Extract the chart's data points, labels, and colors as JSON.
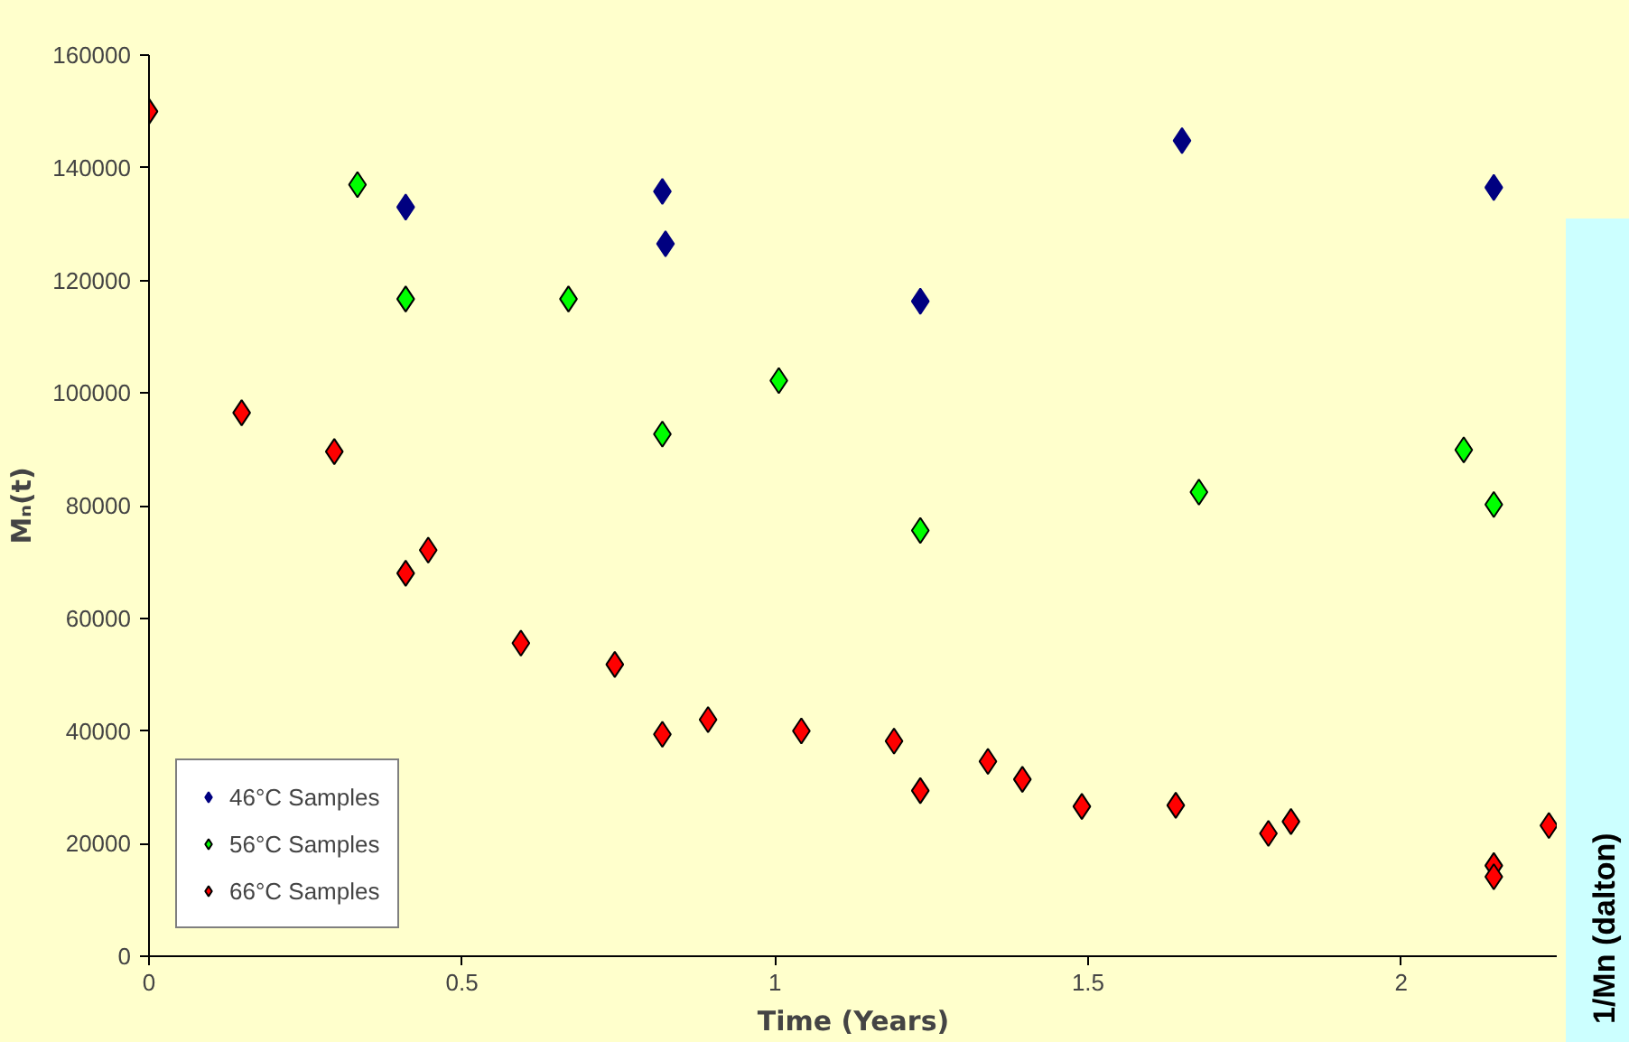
{
  "chart_data": {
    "type": "scatter",
    "xlabel": "Time (Years)",
    "ylabel": "Mₙ(t)",
    "xlim": [
      0,
      2.25
    ],
    "xticks": [
      0,
      0.5,
      1,
      1.5,
      2
    ],
    "ylim": [
      0,
      160000
    ],
    "yticks": [
      0,
      20000,
      40000,
      60000,
      80000,
      100000,
      120000,
      140000,
      160000
    ],
    "grid": false,
    "legend": "bottom left",
    "marker": "diamond",
    "series": [
      {
        "name": "46°C Samples",
        "color": "#000080",
        "x": [
          0.41,
          0.82,
          0.825,
          1.232,
          1.65,
          2.148
        ],
        "values": [
          133000,
          135800,
          126500,
          116300,
          144800,
          136500
        ]
      },
      {
        "name": "56°C Samples",
        "color": "#00ff00",
        "x": [
          0.333,
          0.41,
          0.67,
          0.82,
          1.006,
          1.232,
          1.677,
          2.1,
          2.148
        ],
        "values": [
          137000,
          116700,
          116700,
          92700,
          102200,
          75600,
          82400,
          89900,
          80200
        ]
      },
      {
        "name": "66°C Samples",
        "color": "#ff0000",
        "x": [
          0,
          0.148,
          0.296,
          0.41,
          0.446,
          0.594,
          0.744,
          0.82,
          0.893,
          1.042,
          1.19,
          1.232,
          1.34,
          1.395,
          1.49,
          1.64,
          1.788,
          1.824,
          2.148,
          2.148,
          2.236
        ],
        "values": [
          150000,
          96500,
          89600,
          68000,
          72100,
          55600,
          51800,
          39400,
          42000,
          40000,
          38200,
          29400,
          34600,
          31400,
          26600,
          26800,
          21800,
          23900,
          16100,
          14100,
          23200
        ]
      }
    ],
    "annotations": [
      "1/Mn (dalton)"
    ]
  }
}
